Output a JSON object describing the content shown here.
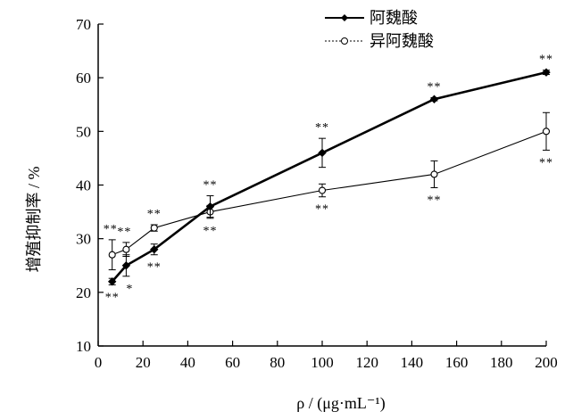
{
  "chart_data": {
    "type": "line",
    "xlabel": "ρ / (μg·mL⁻¹)",
    "ylabel": "增殖抑制率 / %",
    "xlim": [
      0,
      200
    ],
    "ylim": [
      10,
      70
    ],
    "x_ticks": [
      "0",
      "20",
      "40",
      "60",
      "80",
      "100",
      "120",
      "140",
      "160",
      "180",
      "200"
    ],
    "y_ticks": [
      "10",
      "20",
      "30",
      "40",
      "50",
      "60",
      "70"
    ],
    "legend_position": "top-center",
    "grid": false,
    "series": [
      {
        "name": "阿魏酸",
        "marker": "filled-diamond",
        "line_style": "solid-thick",
        "color": "#000000",
        "x": [
          6.25,
          12.5,
          25,
          50,
          100,
          150,
          200
        ],
        "y": [
          22,
          25,
          28,
          36,
          46,
          56,
          61
        ],
        "error": [
          0.6,
          2.0,
          1.0,
          2.0,
          2.7,
          0.3,
          0.4
        ],
        "significance": [
          "**",
          "*",
          "**",
          "**",
          "**",
          "**",
          "**"
        ],
        "significance_position": [
          "below",
          "below",
          "below",
          "above",
          "above",
          "above",
          "above"
        ]
      },
      {
        "name": "异阿魏酸",
        "marker": "open-circle",
        "line_style": "solid-thin",
        "color": "#000000",
        "x": [
          6.25,
          12.5,
          25,
          50,
          100,
          150,
          200
        ],
        "y": [
          27,
          28,
          32,
          35,
          39,
          42,
          50
        ],
        "error": [
          2.8,
          1.3,
          0.6,
          1.2,
          1.2,
          2.5,
          3.5
        ],
        "significance": [
          "**",
          "**",
          "**",
          "**",
          "**",
          "**",
          "**"
        ],
        "significance_position": [
          "above",
          "above",
          "above",
          "below",
          "below",
          "below",
          "below"
        ]
      }
    ]
  }
}
